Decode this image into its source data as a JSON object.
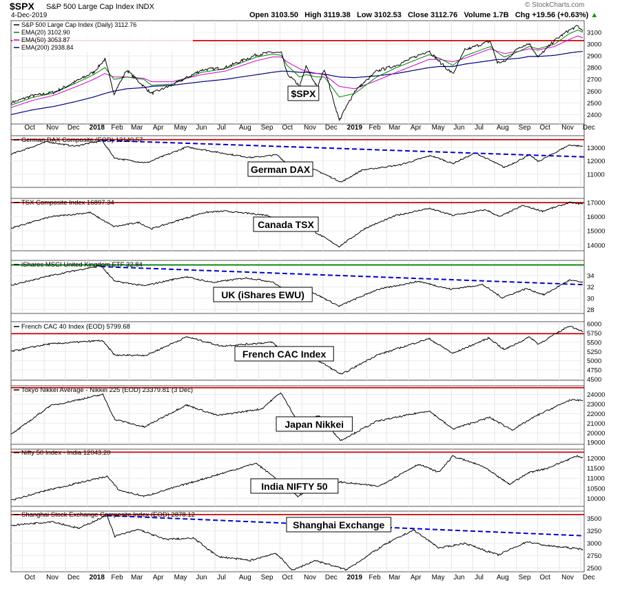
{
  "header": {
    "ticker": "$SPX",
    "name": "S&P 500 Large Cap Index  INDX",
    "date": "4-Dec-2019",
    "open_label": "Open",
    "open": "3103.50",
    "high_label": "High",
    "high": "3119.38",
    "low_label": "Low",
    "low": "3102.53",
    "close_label": "Close",
    "close": "3112.76",
    "volume_label": "Volume",
    "volume": "1.7B",
    "chg_label": "Chg",
    "chg": "+19.56 (+0.63%)",
    "credit": "© StockCharts.com"
  },
  "colors": {
    "price": "#000000",
    "ema20": "#008000",
    "ema50": "#cc00cc",
    "ema200": "#000080",
    "resistance": "#cc0000",
    "trendline": "#0000cc",
    "ukline": "#008000",
    "frame": "#555555"
  },
  "chart_data": [
    {
      "type": "line",
      "name": "spx",
      "legend": [
        "S&P 500 Large Cap Index (Daily) 3112.76",
        "EMA(20) 3102.90",
        "EMA(50) 3053.87",
        "EMA(200) 2938.84"
      ],
      "label": "$SPX",
      "x": [
        "2017-09-15",
        "2017-10-15",
        "2017-11-15",
        "2017-12-15",
        "2018-01-10",
        "2018-01-26",
        "2018-02-08",
        "2018-02-26",
        "2018-03-22",
        "2018-04-02",
        "2018-05-01",
        "2018-06-12",
        "2018-07-15",
        "2018-08-29",
        "2018-09-20",
        "2018-10-03",
        "2018-10-11",
        "2018-10-29",
        "2018-11-07",
        "2018-11-23",
        "2018-12-03",
        "2018-12-24",
        "2019-01-15",
        "2019-02-15",
        "2019-03-15",
        "2019-04-30",
        "2019-05-15",
        "2019-06-03",
        "2019-06-20",
        "2019-07-26",
        "2019-08-05",
        "2019-08-15",
        "2019-09-05",
        "2019-09-19",
        "2019-10-02",
        "2019-10-25",
        "2019-11-15",
        "2019-11-27",
        "2019-12-04"
      ],
      "values": [
        2500,
        2560,
        2590,
        2680,
        2760,
        2872,
        2580,
        2780,
        2640,
        2580,
        2650,
        2780,
        2800,
        2910,
        2930,
        2925,
        2750,
        2640,
        2810,
        2630,
        2790,
        2350,
        2600,
        2770,
        2820,
        2945,
        2850,
        2745,
        2950,
        3025,
        2845,
        2850,
        2975,
        3005,
        2890,
        3030,
        3120,
        3153,
        3112
      ],
      "ema20": [
        2480,
        2545,
        2585,
        2665,
        2740,
        2800,
        2700,
        2720,
        2700,
        2650,
        2660,
        2760,
        2790,
        2890,
        2915,
        2905,
        2820,
        2720,
        2740,
        2720,
        2720,
        2550,
        2580,
        2720,
        2800,
        2910,
        2880,
        2820,
        2900,
        2980,
        2930,
        2890,
        2940,
        2980,
        2960,
        3000,
        3090,
        3120,
        3102
      ],
      "ema50": [
        2460,
        2520,
        2565,
        2635,
        2700,
        2750,
        2720,
        2720,
        2710,
        2680,
        2680,
        2740,
        2770,
        2860,
        2890,
        2890,
        2850,
        2790,
        2770,
        2750,
        2740,
        2640,
        2620,
        2690,
        2760,
        2870,
        2870,
        2850,
        2880,
        2960,
        2940,
        2920,
        2940,
        2960,
        2950,
        2980,
        3040,
        3070,
        3053
      ],
      "ema200": [
        2400,
        2440,
        2470,
        2510,
        2550,
        2580,
        2600,
        2620,
        2630,
        2640,
        2650,
        2680,
        2700,
        2740,
        2760,
        2770,
        2770,
        2760,
        2760,
        2750,
        2745,
        2720,
        2715,
        2730,
        2750,
        2800,
        2810,
        2810,
        2830,
        2860,
        2870,
        2870,
        2880,
        2895,
        2895,
        2905,
        2925,
        2935,
        2938
      ],
      "resistance": 3030,
      "y_ticks": [
        2400,
        2500,
        2600,
        2700,
        2800,
        2900,
        3000,
        3100
      ],
      "ylim": [
        2320,
        3200
      ]
    },
    {
      "type": "line",
      "name": "dax",
      "legend": "German DAX Composite (EOD) 13140.57",
      "label": "German DAX",
      "x": [
        "2017-09-15",
        "2017-11-05",
        "2017-12-15",
        "2018-01-22",
        "2018-02-09",
        "2018-03-26",
        "2018-05-22",
        "2018-07-10",
        "2018-08-20",
        "2018-09-27",
        "2018-10-11",
        "2018-11-05",
        "2018-11-23",
        "2018-12-27",
        "2019-01-25",
        "2019-03-20",
        "2019-05-03",
        "2019-06-03",
        "2019-07-05",
        "2019-08-15",
        "2019-09-20",
        "2019-10-02",
        "2019-11-15",
        "2019-12-04"
      ],
      "values": [
        12500,
        13450,
        13100,
        13550,
        12200,
        11850,
        13050,
        12600,
        12250,
        12450,
        11800,
        11500,
        11250,
        10400,
        11300,
        11700,
        12400,
        11800,
        12600,
        11500,
        12450,
        11950,
        13200,
        13100
      ],
      "resistance": 13600,
      "trend": [
        [
          "2018-01-22",
          13550
        ],
        [
          "2019-12-04",
          12300
        ]
      ],
      "y_ticks": [
        11000,
        12000,
        13000
      ],
      "ylim": [
        10000,
        13900
      ]
    },
    {
      "type": "line",
      "name": "tsx",
      "legend": "TSX Composite Index 16897.34",
      "label": "Canada TSX",
      "x": [
        "2017-09-15",
        "2017-11-10",
        "2018-01-05",
        "2018-02-08",
        "2018-03-15",
        "2018-04-02",
        "2018-06-15",
        "2018-07-15",
        "2018-09-15",
        "2018-10-11",
        "2018-11-07",
        "2018-12-24",
        "2019-01-30",
        "2019-03-15",
        "2019-04-30",
        "2019-06-03",
        "2019-07-20",
        "2019-08-08",
        "2019-09-10",
        "2019-10-08",
        "2019-11-15",
        "2019-12-04"
      ],
      "values": [
        15200,
        16000,
        16300,
        15300,
        15600,
        15150,
        16300,
        16400,
        16100,
        15500,
        15300,
        13900,
        15200,
        16100,
        16600,
        16100,
        16500,
        16000,
        16800,
        16400,
        17000,
        16900
      ],
      "resistance": 17000,
      "y_ticks": [
        14000,
        15000,
        16000,
        17000
      ],
      "ylim": [
        13600,
        17300
      ]
    },
    {
      "type": "line",
      "name": "ewu",
      "legend": "iShares MSCI United Kingdom ETF 32.84",
      "label": "UK (iShares EWU)",
      "x": [
        "2017-09-15",
        "2017-11-10",
        "2018-01-20",
        "2018-02-09",
        "2018-03-23",
        "2018-05-20",
        "2018-06-28",
        "2018-08-15",
        "2018-09-20",
        "2018-10-11",
        "2018-11-07",
        "2018-12-24",
        "2019-02-15",
        "2019-04-15",
        "2019-05-31",
        "2019-07-15",
        "2019-08-12",
        "2019-09-15",
        "2019-10-10",
        "2019-11-15",
        "2019-12-04"
      ],
      "values": [
        32.3,
        34.0,
        35.8,
        33.0,
        32.2,
        33.8,
        32.8,
        33.6,
        32.9,
        31.2,
        31.6,
        28.6,
        31.5,
        33.0,
        31.6,
        32.4,
        30.1,
        31.7,
        30.6,
        33.2,
        32.8
      ],
      "resistance": 35.9,
      "trend": [
        [
          "2018-01-20",
          35.6
        ],
        [
          "2019-12-04",
          32.4
        ]
      ],
      "y_ticks": [
        28,
        30,
        32,
        34
      ],
      "ylim": [
        27.3,
        36.7
      ]
    },
    {
      "type": "line",
      "name": "cac",
      "legend": "French CAC 40 Index (EOD) 5799.68",
      "label": "French CAC Index",
      "x": [
        "2017-09-15",
        "2017-11-05",
        "2018-01-22",
        "2018-02-09",
        "2018-03-26",
        "2018-05-22",
        "2018-07-10",
        "2018-09-20",
        "2018-10-11",
        "2018-11-20",
        "2018-12-27",
        "2019-02-15",
        "2019-04-30",
        "2019-06-03",
        "2019-07-24",
        "2019-08-15",
        "2019-09-20",
        "2019-10-02",
        "2019-11-15",
        "2019-12-04"
      ],
      "values": [
        5250,
        5450,
        5550,
        5150,
        5150,
        5650,
        5400,
        5500,
        5150,
        5050,
        4630,
        5150,
        5600,
        5200,
        5620,
        5300,
        5650,
        5450,
        5950,
        5800
      ],
      "resistance": 5735,
      "y_ticks": [
        4500,
        4750,
        5000,
        5250,
        5500,
        5750,
        6000
      ],
      "ylim": [
        4470,
        6060
      ]
    },
    {
      "type": "line",
      "name": "nikkei",
      "legend": "Tokyo Nikkei Average - Nikkei 225 (EOD) 23379.81 (3 Dec)",
      "label": "Japan Nikkei",
      "x": [
        "2017-09-15",
        "2017-11-09",
        "2018-01-23",
        "2018-02-09",
        "2018-03-23",
        "2018-05-21",
        "2018-07-05",
        "2018-09-05",
        "2018-10-02",
        "2018-10-26",
        "2018-11-25",
        "2018-12-26",
        "2019-02-15",
        "2019-04-30",
        "2019-06-03",
        "2019-07-25",
        "2019-08-26",
        "2019-09-30",
        "2019-11-15",
        "2019-12-04"
      ],
      "values": [
        19800,
        22800,
        24000,
        21400,
        20600,
        22900,
        21800,
        22500,
        24200,
        21200,
        21800,
        19200,
        21200,
        22300,
        20400,
        21600,
        20300,
        21800,
        23400,
        23380
      ],
      "resistance": 24700,
      "y_ticks": [
        19000,
        20000,
        21000,
        22000,
        23000,
        24000
      ],
      "ylim": [
        18800,
        24900
      ]
    },
    {
      "type": "line",
      "name": "nifty",
      "legend": "Nifty 50 Index - India 12043.20",
      "label": "India NIFTY 50",
      "x": [
        "2017-09-15",
        "2017-11-05",
        "2018-01-29",
        "2018-02-15",
        "2018-03-23",
        "2018-05-20",
        "2018-08-28",
        "2018-09-25",
        "2018-10-26",
        "2018-12-03",
        "2019-02-18",
        "2019-04-15",
        "2019-05-14",
        "2019-06-03",
        "2019-07-15",
        "2019-08-22",
        "2019-09-20",
        "2019-10-15",
        "2019-11-25",
        "2019-12-04"
      ],
      "values": [
        9900,
        10400,
        11100,
        10400,
        10100,
        10700,
        11750,
        11000,
        10100,
        10900,
        10600,
        11700,
        11300,
        12100,
        11600,
        10700,
        11300,
        11500,
        12100,
        12043
      ],
      "resistance": 12300,
      "y_ticks": [
        10000,
        10500,
        11000,
        11500,
        12000
      ],
      "ylim": [
        9600,
        12450
      ]
    },
    {
      "type": "line",
      "name": "shanghai",
      "legend": "Shanghai Stock Exchange Composite Index (EOD) 2878.12",
      "label": "Shanghai Exchange",
      "x": [
        "2017-09-15",
        "2017-11-13",
        "2017-12-20",
        "2018-01-29",
        "2018-02-09",
        "2018-03-15",
        "2018-04-20",
        "2018-06-01",
        "2018-07-05",
        "2018-08-20",
        "2018-09-25",
        "2018-10-19",
        "2018-11-20",
        "2019-01-03",
        "2019-02-25",
        "2019-04-08",
        "2019-05-15",
        "2019-06-20",
        "2019-08-06",
        "2019-09-16",
        "2019-10-15",
        "2019-12-04"
      ],
      "values": [
        3360,
        3440,
        3300,
        3570,
        3140,
        3280,
        3080,
        3100,
        2730,
        2650,
        2800,
        2450,
        2650,
        2460,
        2960,
        3270,
        2900,
        3000,
        2760,
        3030,
        2950,
        2878
      ],
      "resistance": 3580,
      "trend": [
        [
          "2018-01-29",
          3560
        ],
        [
          "2019-12-04",
          3150
        ]
      ],
      "y_ticks": [
        2500,
        2750,
        3000,
        3250,
        3500
      ],
      "ylim": [
        2420,
        3650
      ]
    }
  ],
  "x_axis": {
    "ticks": [
      {
        "date": "2017-10-01",
        "label": "Oct"
      },
      {
        "date": "2017-11-01",
        "label": "Nov"
      },
      {
        "date": "2017-12-01",
        "label": "Dec"
      },
      {
        "date": "2018-01-01",
        "label": "2018"
      },
      {
        "date": "2018-02-01",
        "label": "Feb"
      },
      {
        "date": "2018-03-01",
        "label": "Mar"
      },
      {
        "date": "2018-04-01",
        "label": "Apr"
      },
      {
        "date": "2018-05-01",
        "label": "May"
      },
      {
        "date": "2018-06-01",
        "label": "Jun"
      },
      {
        "date": "2018-07-01",
        "label": "Jul"
      },
      {
        "date": "2018-08-01",
        "label": "Aug"
      },
      {
        "date": "2018-09-01",
        "label": "Sep"
      },
      {
        "date": "2018-10-01",
        "label": "Oct"
      },
      {
        "date": "2018-11-01",
        "label": "Nov"
      },
      {
        "date": "2018-12-01",
        "label": "Dec"
      },
      {
        "date": "2019-01-01",
        "label": "2019"
      },
      {
        "date": "2019-02-01",
        "label": "Feb"
      },
      {
        "date": "2019-03-01",
        "label": "Mar"
      },
      {
        "date": "2019-04-01",
        "label": "Apr"
      },
      {
        "date": "2019-05-01",
        "label": "May"
      },
      {
        "date": "2019-06-01",
        "label": "Jun"
      },
      {
        "date": "2019-07-01",
        "label": "Jul"
      },
      {
        "date": "2019-08-01",
        "label": "Aug"
      },
      {
        "date": "2019-09-01",
        "label": "Sep"
      },
      {
        "date": "2019-10-01",
        "label": "Oct"
      },
      {
        "date": "2019-11-01",
        "label": "Nov"
      },
      {
        "date": "2019-12-01",
        "label": "Dec"
      }
    ],
    "range": [
      "2017-09-15",
      "2019-12-06"
    ]
  }
}
